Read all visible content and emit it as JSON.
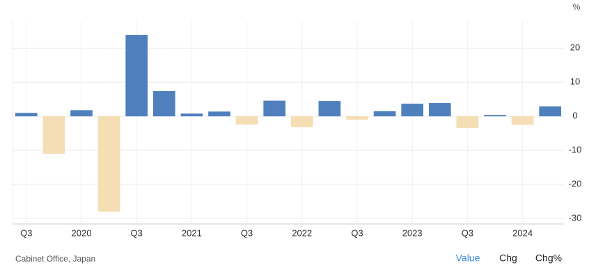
{
  "chart_data": {
    "type": "bar",
    "unit": "%",
    "categories": [
      "Q3",
      null,
      "2020",
      null,
      "Q3",
      null,
      "2021",
      null,
      "Q3",
      null,
      "2022",
      null,
      "Q3",
      null,
      "2023",
      null,
      "Q3",
      null,
      "2024",
      null
    ],
    "values": [
      1.0,
      -11.0,
      1.8,
      -28.0,
      23.9,
      7.4,
      0.8,
      1.4,
      -2.4,
      4.6,
      -3.2,
      4.5,
      -1.0,
      1.5,
      3.7,
      3.9,
      -3.4,
      0.4,
      -2.5,
      2.9
    ],
    "colors": {
      "positive": "#4f80bd",
      "negative": "#f5deb3"
    },
    "ylim": [
      -31.6,
      28
    ],
    "yticks": [
      -30,
      -20,
      -10,
      0,
      10,
      20
    ],
    "grid": true,
    "source": "Cabinet Office, Japan",
    "buttons": [
      "Value",
      "Chg",
      "Chg%"
    ]
  }
}
